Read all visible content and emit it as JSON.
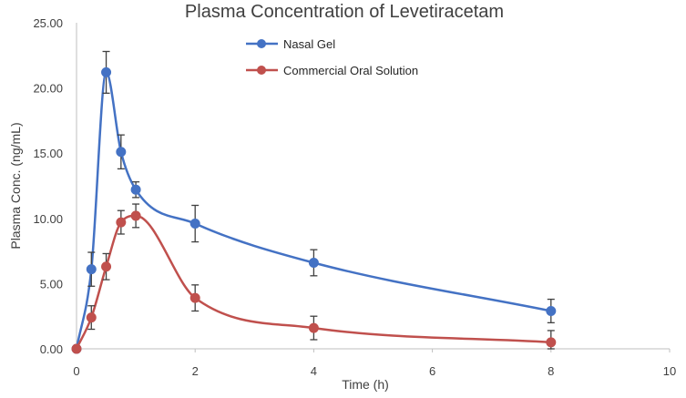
{
  "chart_data": {
    "type": "line",
    "title": "Plasma Concentration of Levetiracetam",
    "xlabel": "Time (h)",
    "ylabel": "Plasma Conc. (ng/mL)",
    "xlim": [
      0,
      10
    ],
    "ylim": [
      0,
      25
    ],
    "xticks": [
      "0",
      "2",
      "4",
      "6",
      "8",
      "10"
    ],
    "yticks": [
      "0.00",
      "5.00",
      "10.00",
      "15.00",
      "20.00",
      "25.00"
    ],
    "grid": false,
    "legend_position": "top-center",
    "series": [
      {
        "name": "Nasal Gel",
        "color": "#4472C4",
        "x": [
          0,
          0.25,
          0.5,
          0.75,
          1,
          2,
          4,
          8
        ],
        "y": [
          0,
          6.1,
          21.2,
          15.1,
          12.2,
          9.6,
          6.6,
          2.9
        ],
        "error": [
          0,
          1.3,
          1.6,
          1.3,
          0.6,
          1.4,
          1.0,
          0.9
        ]
      },
      {
        "name": "Commercial Oral Solution",
        "color": "#C0504D",
        "x": [
          0,
          0.25,
          0.5,
          0.75,
          1,
          2,
          4,
          8
        ],
        "y": [
          0,
          2.4,
          6.3,
          9.7,
          10.2,
          3.9,
          1.6,
          0.5
        ],
        "error": [
          0,
          0.9,
          1.0,
          0.9,
          0.9,
          1.0,
          0.9,
          0.9
        ]
      }
    ]
  }
}
